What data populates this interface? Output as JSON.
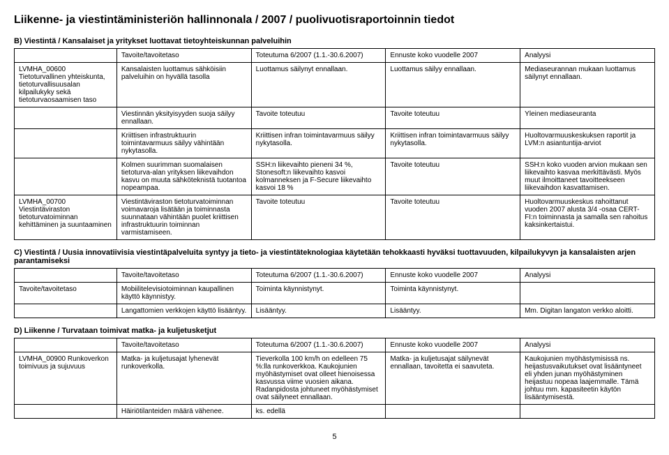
{
  "page_title": "Liikenne- ja viestintäministeriön hallinnonala / 2007 / puolivuotisraportoinnin tiedot",
  "page_number": "5",
  "sections": [
    {
      "title": "B) Viestintä / Kansalaiset ja yritykset luottavat tietoyhteiskunnan palveluihin",
      "headers": [
        "",
        "Tavoite/tavoitetaso",
        "Toteutuma 6/2007 (1.1.-30.6.2007)",
        "Ennuste koko vuodelle 2007",
        "Analyysi"
      ],
      "rows": [
        [
          "LVMHA_00600 Tietoturvallinen yhteiskunta, tietoturvallisuusalan kilpailukyky sekä tietoturvaosaamisen taso",
          "Kansalaisten luottamus sähköisiin palveluihin on hyvällä tasolla",
          "Luottamus säilynyt ennallaan.",
          "Luottamus säilyy ennallaan.",
          "Mediaseurannan mukaan luottamus säilynyt ennallaan."
        ],
        [
          "",
          "Viestinnän yksityisyyden suoja säilyy ennallaan.",
          "Tavoite toteutuu",
          "Tavoite toteutuu",
          "Yleinen mediaseuranta"
        ],
        [
          "",
          "Kriittisen infrastruktuurin toimintavarmuus säilyy vähintään nykytasolla.",
          "Kriittisen infran toimintavarmuus säilyy nykytasolla.",
          "Kriittisen infran toimintavarmuus säilyy nykytasolla.",
          "Huoltovarmuuskeskuksen raportit ja LVM:n asiantuntija-arviot"
        ],
        [
          "",
          "Kolmen suurimman suomalaisen tietoturva-alan yrityksen liikevaihdon kasvu on muuta sähköteknistä tuotantoa nopeampaa.",
          "SSH:n liikevaihto pieneni 34 %, Stonesoft:n liikevaihto kasvoi kolmanneksen ja F-Secure liikevaihto kasvoi 18 %",
          "Tavoite toteutuu",
          "SSH:n koko vuoden arvion mukaan sen liikevaihto kasvaa merkittävästi. Myös muut ilmoittaneet tavoitteekseen liikevaihdon kasvattamisen."
        ],
        [
          "LVMHA_00700 Viestintäviraston tietoturvatoiminnan kehittäminen ja suuntaaminen",
          "Viestintäviraston tietoturvatoiminnan voimavaroja lisätään ja toiminnasta suunnataan vähintään puolet kriittisen infrastruktuurin toiminnan varmistamiseen.",
          "Tavoite toteutuu",
          "Tavoite toteutuu",
          "Huoltovarmuuskeskus rahoittanut vuoden 2007 alusta 3/4 -osaa CERT-FI:n toiminnasta ja samalla sen rahoitus kaksinkertaistui."
        ]
      ]
    },
    {
      "title": "C) Viestintä / Uusia innovatiivisia viestintäpalveluita syntyy ja tieto- ja viestintäteknologiaa käytetään tehokkaasti hyväksi tuottavuuden, kilpailukyvyn ja kansalaisten arjen parantamiseksi",
      "headers": [
        "",
        "Tavoite/tavoitetaso",
        "Toteutuma 6/2007 (1.1.-30.6.2007)",
        "Ennuste koko vuodelle 2007",
        "Analyysi"
      ],
      "rows": [
        [
          "Tavoite/tavoitetaso",
          "Mobiilitelevisiotoiminnan kaupallinen käyttö käynnistyy.",
          "Toiminta käynnistynyt.",
          "Toiminta käynnistynyt.",
          ""
        ],
        [
          "",
          "Langattomien verkkojen käyttö lisääntyy.",
          "Lisääntyy.",
          "Lisääntyy.",
          "Mm. Digitan langaton verkko aloitti."
        ]
      ]
    },
    {
      "title": "D) Liikenne / Turvataan toimivat matka- ja kuljetusketjut",
      "headers": [
        "",
        "Tavoite/tavoitetaso",
        "Toteutuma 6/2007 (1.1.-30.6.2007)",
        "Ennuste koko vuodelle 2007",
        "Analyysi"
      ],
      "rows": [
        [
          "LVMHA_00900 Runkoverkon toimivuus ja sujuvuus",
          "Matka- ja kuljetusajat lyhenevät runkoverkolla.",
          "Tieverkolla 100 km/h on edelleen 75 %:lla runkoverkkoa. Kaukojunien myöhästymiset ovat olleet hienoisessa kasvussa viime vuosien aikana. Radanpidosta johtuneet myöhästymiset ovat säilyneet ennallaan.",
          "Matka- ja kuljetusajat säilynevät ennallaan, tavoitetta ei saavuteta.",
          "Kaukojunien myöhästymisissä ns. heijastusvaikutukset ovat lisääntyneet eli yhden junan myöhästyminen heijastuu nopeaa laajemmalle. Tämä johtuu mm. kapasiteetin käytön lisääntymisestä."
        ],
        [
          "",
          "Häiriötilanteiden määrä vähenee.",
          "ks. edellä",
          "",
          ""
        ]
      ]
    }
  ]
}
